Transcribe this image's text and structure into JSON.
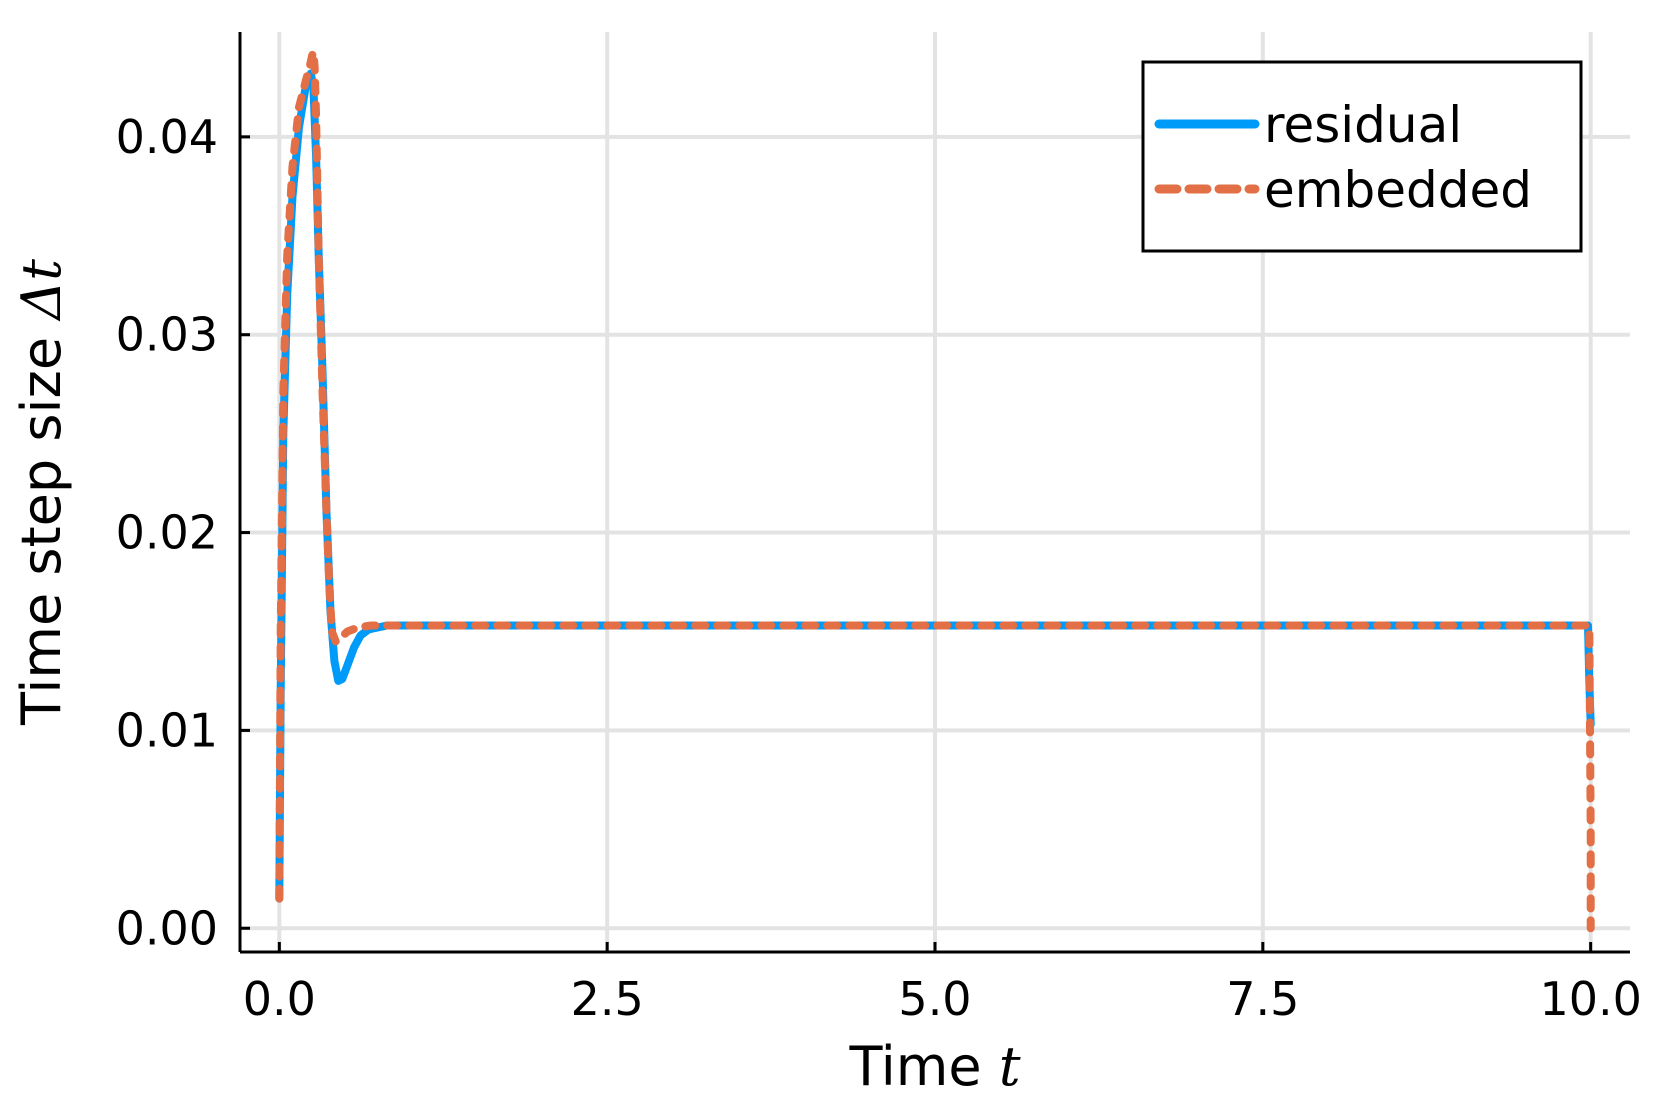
{
  "chart_data": {
    "type": "line",
    "title": "",
    "xlabel": "Time",
    "xlabel_var": "t",
    "ylabel": "Time step size",
    "ylabel_var": "Δt",
    "xlim": [
      -0.3,
      10.3
    ],
    "ylim": [
      -0.0012,
      0.0453
    ],
    "xticks": [
      0.0,
      2.5,
      5.0,
      7.5,
      10.0
    ],
    "xtick_labels": [
      "0.0",
      "2.5",
      "5.0",
      "7.5",
      "10.0"
    ],
    "yticks": [
      0.0,
      0.01,
      0.02,
      0.03,
      0.04
    ],
    "ytick_labels": [
      "0.00",
      "0.01",
      "0.02",
      "0.03",
      "0.04"
    ],
    "grid": true,
    "legend": "top-right",
    "series": [
      {
        "name": "residual",
        "color": "#009af9",
        "style": "solid",
        "x": [
          0.0,
          0.01,
          0.03,
          0.06,
          0.1,
          0.15,
          0.2,
          0.24,
          0.26,
          0.28,
          0.3,
          0.33,
          0.36,
          0.39,
          0.42,
          0.45,
          0.48,
          0.52,
          0.57,
          0.62,
          0.68,
          0.75,
          0.82,
          0.9,
          1.5,
          3.0,
          5.0,
          7.0,
          9.0,
          9.98,
          9.99,
          10.0
        ],
        "y": [
          0.0015,
          0.012,
          0.025,
          0.032,
          0.037,
          0.0405,
          0.0425,
          0.0432,
          0.0425,
          0.039,
          0.034,
          0.028,
          0.021,
          0.016,
          0.0135,
          0.0125,
          0.0126,
          0.0133,
          0.0142,
          0.0148,
          0.0151,
          0.0152,
          0.0153,
          0.0153,
          0.0153,
          0.0153,
          0.0153,
          0.0153,
          0.0153,
          0.0153,
          0.0125,
          0.0103
        ]
      },
      {
        "name": "embedded",
        "color": "#e26f46",
        "style": "dashed",
        "x": [
          0.0,
          0.01,
          0.03,
          0.06,
          0.1,
          0.15,
          0.2,
          0.23,
          0.25,
          0.26,
          0.27,
          0.28,
          0.3,
          0.33,
          0.36,
          0.38,
          0.4,
          0.43,
          0.47,
          0.52,
          0.6,
          0.7,
          0.8,
          1.5,
          3.0,
          5.0,
          7.0,
          9.0,
          9.98,
          9.99,
          10.0,
          10.0
        ],
        "y": [
          0.0015,
          0.015,
          0.027,
          0.034,
          0.0385,
          0.0415,
          0.0428,
          0.0435,
          0.0441,
          0.0443,
          0.0435,
          0.041,
          0.034,
          0.027,
          0.021,
          0.0175,
          0.015,
          0.0145,
          0.0147,
          0.015,
          0.0152,
          0.0153,
          0.0153,
          0.0153,
          0.0153,
          0.0153,
          0.0153,
          0.0153,
          0.0153,
          0.0152,
          0.005,
          0.0
        ]
      }
    ]
  }
}
